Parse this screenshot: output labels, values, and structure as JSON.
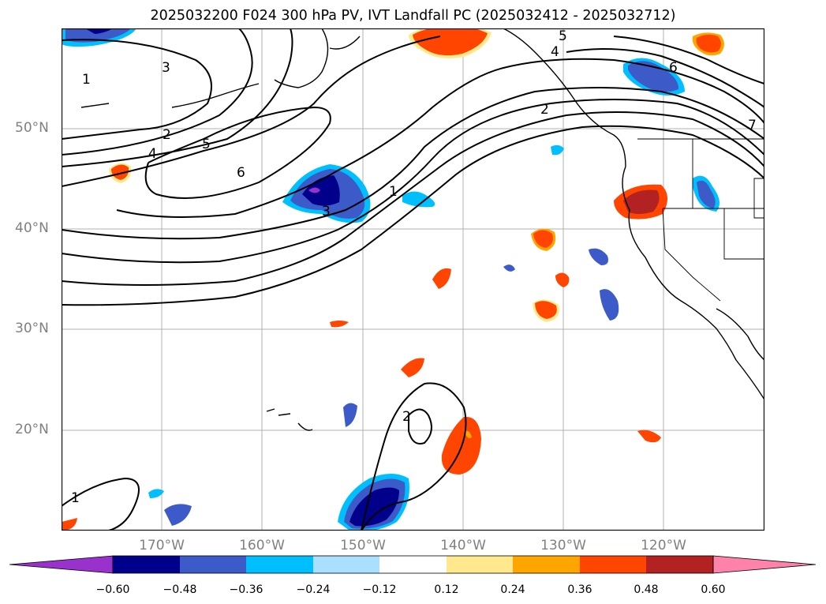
{
  "title": "2025032200 F024 300 hPa PV, IVT Landfall PC (2025032412 - 2025032712)",
  "map": {
    "lat_labels": [
      "50°N",
      "40°N",
      "30°N",
      "20°N"
    ],
    "lon_labels": [
      "170°W",
      "160°W",
      "150°W",
      "140°W",
      "130°W",
      "120°W"
    ],
    "contour_labels": [
      "1",
      "2",
      "3",
      "4",
      "5",
      "6",
      "7",
      "1",
      "2",
      "3",
      "4",
      "5",
      "6",
      "1",
      "2"
    ],
    "land_color": "#ffffff",
    "grid_color": "#b0b0b0"
  },
  "colorbar": {
    "tick_labels": [
      "−0.60",
      "−0.48",
      "−0.36",
      "−0.24",
      "−0.12",
      "0.12",
      "0.24",
      "0.36",
      "0.48",
      "0.60"
    ],
    "colors": [
      "#9932cc",
      "#00008b",
      "#3c5ac8",
      "#00bfff",
      "#aadfff",
      "#ffffff",
      "#ffe98c",
      "#ffa500",
      "#ff4500",
      "#b22222",
      "#ff82ab"
    ]
  }
}
